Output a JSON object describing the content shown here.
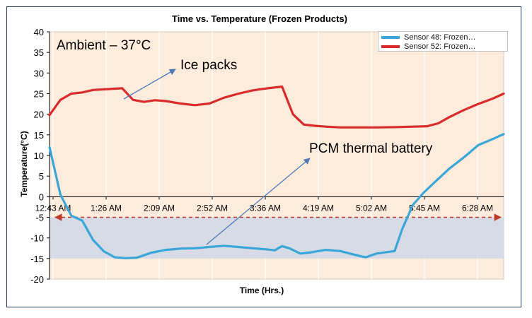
{
  "chart_data": {
    "type": "line",
    "title": "Time vs. Temperature (Frozen Products)",
    "xlabel": "Time (Hrs.)",
    "ylabel": "Temperature(°C)",
    "ylim": [
      -20,
      40
    ],
    "yticks": [
      -20,
      -15,
      -10,
      -5,
      0,
      5,
      10,
      15,
      20,
      25,
      30,
      35,
      40
    ],
    "xlim": [
      0,
      6.25
    ],
    "x_tick_labels": [
      "12:43 AM",
      "1:26 AM",
      "2:09 AM",
      "2:52 AM",
      "3:36 AM",
      "4:19 AM",
      "5:02 AM",
      "5:45 AM",
      "6:28 AM"
    ],
    "grid": "vertical",
    "legend_position": "top-right",
    "series": [
      {
        "name": "Sensor 48: Frozen…",
        "color": "#3aa6d8",
        "x": [
          0,
          0.15,
          0.3,
          0.45,
          0.6,
          0.75,
          0.9,
          1.05,
          1.2,
          1.4,
          1.6,
          1.8,
          2.0,
          2.2,
          2.4,
          2.6,
          2.8,
          3.0,
          3.1,
          3.2,
          3.3,
          3.45,
          3.6,
          3.8,
          4.0,
          4.2,
          4.35,
          4.5,
          4.62,
          4.75,
          4.85,
          5.0,
          5.15,
          5.3,
          5.5,
          5.7,
          5.9,
          6.1,
          6.25
        ],
        "values": [
          12,
          0.5,
          -4.6,
          -5.8,
          -10.5,
          -13.3,
          -14.7,
          -14.9,
          -14.8,
          -13.6,
          -12.9,
          -12.6,
          -12.5,
          -12.2,
          -11.9,
          -12.2,
          -12.5,
          -12.8,
          -13.0,
          -12.0,
          -12.5,
          -13.8,
          -13.5,
          -12.9,
          -13.2,
          -14.1,
          -14.7,
          -13.8,
          -13.5,
          -13.2,
          -8.0,
          -2.0,
          1.0,
          3.5,
          6.8,
          9.5,
          12.5,
          14.0,
          15.2
        ]
      },
      {
        "name": "Sensor 52: Frozen…",
        "color": "#d92b2b",
        "x": [
          0,
          0.15,
          0.3,
          0.45,
          0.6,
          0.8,
          1.0,
          1.15,
          1.3,
          1.45,
          1.6,
          1.8,
          2.0,
          2.2,
          2.4,
          2.6,
          2.8,
          3.0,
          3.2,
          3.35,
          3.5,
          3.65,
          3.8,
          4.0,
          4.2,
          4.5,
          4.8,
          5.0,
          5.2,
          5.35,
          5.5,
          5.7,
          5.9,
          6.1,
          6.25
        ],
        "values": [
          19.8,
          23.5,
          25.0,
          25.3,
          25.9,
          26.1,
          26.3,
          23.5,
          23.0,
          23.4,
          23.2,
          22.6,
          22.2,
          22.6,
          24.0,
          25.0,
          25.8,
          26.3,
          26.7,
          20.0,
          17.5,
          17.2,
          17.0,
          16.8,
          16.8,
          16.8,
          16.9,
          17.0,
          17.1,
          17.8,
          19.3,
          21.0,
          22.5,
          23.8,
          25.0
        ]
      }
    ],
    "annotations": [
      {
        "text": "Ambient – 37°C"
      },
      {
        "text": "Ice packs"
      },
      {
        "text": "PCM thermal battery"
      }
    ]
  }
}
